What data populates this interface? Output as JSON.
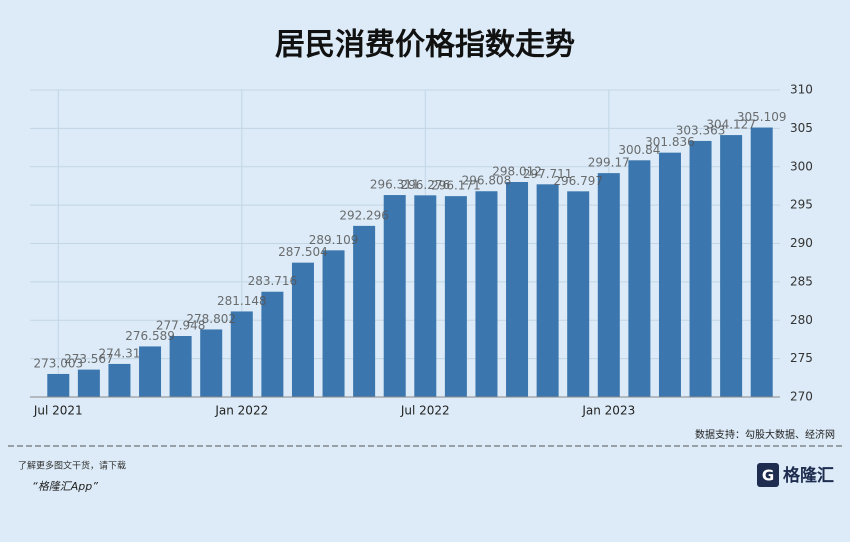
{
  "chart_data": {
    "type": "bar",
    "title": "居民消费价格指数走势",
    "categories": [
      "Jul 2021",
      null,
      null,
      null,
      null,
      null,
      "Jan 2022",
      null,
      null,
      null,
      null,
      null,
      "Jul 2022",
      null,
      null,
      null,
      null,
      null,
      "Jan 2023",
      null,
      null,
      null,
      null,
      null
    ],
    "values": [
      273.003,
      273.567,
      274.31,
      276.589,
      277.948,
      278.802,
      281.148,
      283.716,
      287.504,
      289.109,
      292.296,
      296.311,
      296.276,
      296.171,
      296.808,
      298.012,
      297.711,
      296.797,
      299.17,
      300.84,
      301.836,
      303.363,
      304.127,
      305.109
    ],
    "value_labels": [
      "273.003",
      "273.567",
      "274.31",
      "276.589",
      "277.948",
      "278.802",
      "281.148",
      "283.716",
      "287.504",
      "289.109",
      "292.296",
      "296.311",
      "296.276",
      "296.171",
      "296.808",
      "298.012",
      "297.711",
      "296.797",
      "299.17",
      "300.84",
      "301.836",
      "303.363",
      "304.127",
      "305.109"
    ],
    "color": "#3b76ae",
    "ylim": [
      270,
      310
    ],
    "yticks": [
      270,
      275,
      280,
      285,
      290,
      295,
      300,
      305,
      310
    ],
    "grid": true
  },
  "source": "数据支持：勾股大数据、经济网",
  "footer": {
    "line1": "了解更多图文干货，请下载",
    "line2": "“格隆汇App”",
    "logo": "格隆汇"
  }
}
